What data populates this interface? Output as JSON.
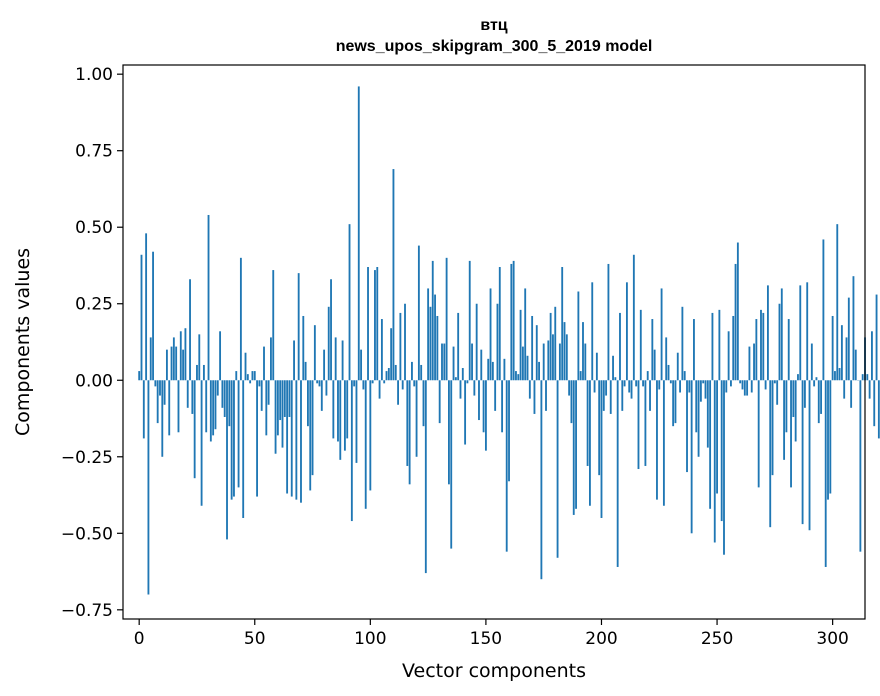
{
  "chart_data": {
    "type": "bar",
    "title_line1": "втц",
    "title_line2": "news_upos_skipgram_300_5_2019 model",
    "xlabel": "Vector components",
    "ylabel": "Components values",
    "xlim": [
      -7,
      314
    ],
    "ylim": [
      -0.78,
      1.03
    ],
    "xticks": [
      0,
      50,
      100,
      150,
      200,
      250,
      300
    ],
    "xtick_labels": [
      "0",
      "50",
      "100",
      "150",
      "200",
      "250",
      "300"
    ],
    "yticks": [
      1.0,
      0.75,
      0.5,
      0.25,
      0.0,
      -0.25,
      -0.5,
      -0.75
    ],
    "ytick_labels": [
      "1.00",
      "0.75",
      "0.50",
      "0.25",
      "0.00",
      "−0.25",
      "−0.50",
      "−0.75"
    ],
    "grid": false,
    "bar_color": "#1f77b4",
    "values": [
      0.03,
      0.41,
      -0.19,
      0.48,
      -0.7,
      0.14,
      0.42,
      -0.02,
      -0.14,
      -0.05,
      -0.25,
      -0.08,
      0.1,
      -0.18,
      0.11,
      0.14,
      0.11,
      -0.17,
      0.16,
      0.1,
      0.17,
      -0.09,
      0.33,
      -0.11,
      -0.32,
      0.05,
      0.15,
      -0.41,
      0.05,
      -0.17,
      0.54,
      -0.2,
      -0.18,
      -0.16,
      -0.05,
      0.16,
      -0.09,
      -0.12,
      -0.52,
      -0.15,
      -0.39,
      -0.38,
      0.03,
      -0.35,
      0.4,
      -0.45,
      0.09,
      0.02,
      -0.01,
      0.03,
      0.03,
      -0.38,
      -0.02,
      -0.1,
      0.11,
      -0.18,
      -0.08,
      0.14,
      0.36,
      -0.24,
      -0.18,
      -0.13,
      -0.22,
      -0.12,
      -0.37,
      -0.12,
      -0.38,
      0.13,
      -0.39,
      0.35,
      -0.4,
      0.21,
      0.06,
      -0.15,
      -0.36,
      -0.31,
      0.18,
      -0.01,
      -0.02,
      -0.1,
      0.1,
      -0.05,
      0.24,
      0.33,
      -0.19,
      0.14,
      -0.2,
      -0.26,
      0.13,
      -0.23,
      -0.19,
      0.51,
      -0.46,
      -0.02,
      -0.27,
      0.96,
      0.1,
      -0.03,
      -0.42,
      0.37,
      -0.36,
      -0.01,
      0.36,
      0.37,
      -0.06,
      0.2,
      -0.01,
      0.03,
      0.04,
      0.17,
      0.69,
      0.05,
      -0.08,
      0.22,
      -0.03,
      0.25,
      -0.28,
      -0.34,
      0.06,
      -0.02,
      -0.25,
      0.44,
      0.05,
      -0.15,
      -0.63,
      0.3,
      0.24,
      0.39,
      0.28,
      0.21,
      -0.14,
      0.12,
      0.12,
      0.4,
      -0.34,
      -0.55,
      0.11,
      0.01,
      0.22,
      -0.06,
      0.04,
      -0.21,
      -0.01,
      0.39,
      0.12,
      -0.05,
      0.25,
      -0.13,
      0.1,
      -0.17,
      -0.23,
      0.07,
      0.3,
      0.06,
      -0.1,
      0.25,
      0.37,
      -0.17,
      0.07,
      -0.56,
      -0.33,
      0.38,
      0.39,
      0.03,
      0.02,
      0.23,
      0.11,
      0.3,
      0.08,
      -0.06,
      0.21,
      -0.11,
      0.18,
      0.06,
      -0.65,
      0.12,
      -0.1,
      0.13,
      0.22,
      0.15,
      0.24,
      -0.58,
      0.12,
      0.37,
      0.19,
      0.15,
      -0.05,
      -0.14,
      -0.44,
      -0.42,
      0.29,
      0.03,
      0.19,
      0.12,
      -0.28,
      -0.41,
      0.32,
      -0.04,
      0.09,
      -0.31,
      -0.45,
      -0.1,
      -0.05,
      0.38,
      -0.11,
      0.08,
      0.01,
      -0.61,
      0.22,
      -0.1,
      -0.02,
      0.32,
      -0.04,
      -0.06,
      0.41,
      -0.02,
      -0.29,
      0.23,
      -0.02,
      -0.28,
      0.03,
      -0.1,
      0.2,
      0.1,
      -0.39,
      -0.03,
      0.3,
      -0.41,
      0.14,
      0.05,
      -0.01,
      -0.15,
      -0.14,
      0.09,
      -0.04,
      0.24,
      0.03,
      -0.3,
      -0.04,
      -0.5,
      0.2,
      -0.17,
      -0.25,
      -0.07,
      -0.01,
      -0.06,
      -0.22,
      -0.42,
      0.22,
      -0.53,
      -0.37,
      0.23,
      -0.46,
      -0.57,
      -0.04,
      0.16,
      -0.02,
      0.21,
      0.38,
      0.45,
      -0.01,
      -0.03,
      -0.05,
      -0.05,
      0.11,
      -0.04,
      0.12,
      0.2,
      -0.35,
      0.23,
      0.22,
      -0.03,
      0.31,
      -0.48,
      -0.31,
      -0.01,
      -0.08,
      0.25,
      0.3,
      -0.26,
      -0.17,
      0.2,
      -0.35,
      -0.12,
      -0.2,
      0.02,
      0.31,
      -0.47,
      -0.09,
      0.32,
      -0.49,
      0.12,
      -0.02,
      0.01,
      -0.14,
      -0.11,
      0.46,
      -0.61,
      -0.39,
      -0.37,
      0.21,
      0.03,
      0.51,
      0.04,
      0.18,
      -0.06,
      0.14,
      0.27,
      -0.09,
      0.34,
      0.1,
      0.0,
      -0.56,
      0.02,
      0.14,
      0.02,
      -0.06,
      0.16,
      -0.15,
      0.28,
      -0.19,
      0.24
    ]
  }
}
